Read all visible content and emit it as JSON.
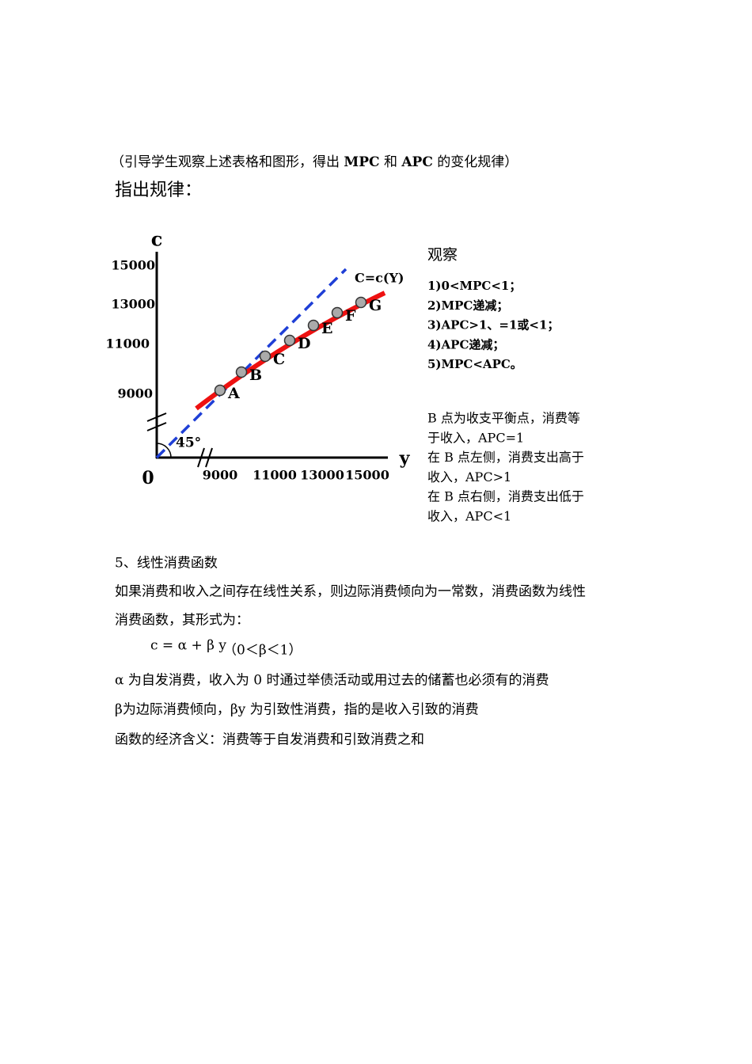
{
  "intro": [
    "（引导学生观察上述表格和图形，得出 ",
    "MPC",
    " 和 ",
    "APC",
    " 的变化规律）"
  ],
  "heading": "指出规律：",
  "diagram": {
    "y_axis_label": "c",
    "x_axis_label": "y",
    "origin": "0",
    "angle": "45°",
    "curve_label": "C=c(Y)",
    "y_ticks": [
      "15000",
      "13000",
      "11000",
      "9000"
    ],
    "x_ticks": [
      "9000",
      "11000",
      "13000",
      "15000"
    ],
    "points": [
      "A",
      "B",
      "C",
      "D",
      "E",
      "F",
      "G"
    ]
  },
  "observe": {
    "title": "观察",
    "rules": [
      "1)0<MPC<1；",
      "2)MPC递减；",
      "3)APC>1、=1或<1；",
      "4)APC递减；",
      "5)MPC<APC。"
    ],
    "notes": [
      "B  点为收支平衡点，消费等",
      "于收入，APC=1",
      "在 B 点左侧，消费支出高于",
      "收入，APC>1",
      "在 B 点右侧，消费支出低于",
      "收入，APC<1"
    ]
  },
  "section": {
    "title": "5、线性消费函数",
    "lines": [
      "如果消费和收入之间存在线性关系，则边际消费倾向为一常数，消费函数为线性",
      "消费函数，其形式为："
    ],
    "formula": "c = α + β y",
    "condition": "（0＜β＜1）",
    "after": [
      "α 为自发消费，收入为 0 时通过举债活动或用过去的储蓄也必须有的消费",
      "β为边际消费倾向，βy 为引致性消费，指的是收入引致的消费",
      "函数的经济含义：消费等于自发消费和引致消费之和"
    ]
  }
}
